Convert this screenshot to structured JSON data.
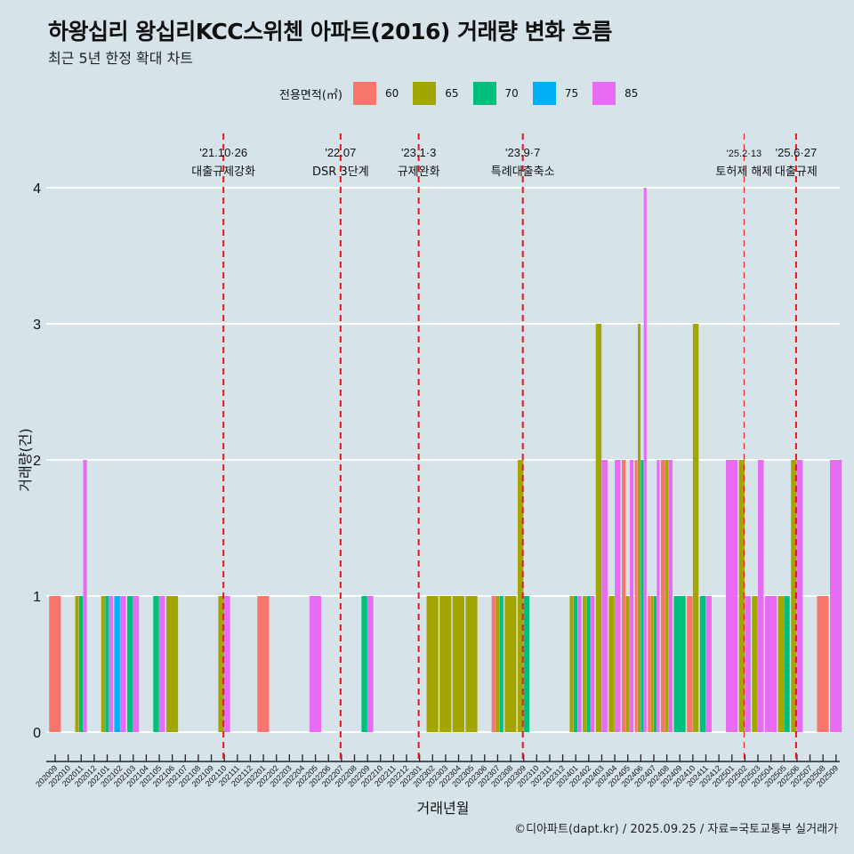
{
  "header": {
    "title": "하왕십리 왕십리KCC스위첸 아파트(2016) 거래량 변화 흐름",
    "subtitle": "최근 5년 한정 확대 차트"
  },
  "legend": {
    "title": "전용면적(㎡)",
    "items": [
      {
        "label": "60",
        "color": "#F8766D"
      },
      {
        "label": "65",
        "color": "#A3A500"
      },
      {
        "label": "70",
        "color": "#00BF7D"
      },
      {
        "label": "75",
        "color": "#00B0F6"
      },
      {
        "label": "85",
        "color": "#E76BF3"
      }
    ]
  },
  "caption": "©디아파트(dapt.kr) / 2025.09.25 / 자료=국토교통부 실거래가",
  "chart_data": {
    "type": "bar",
    "subtype": "dodged",
    "title": "하왕십리 왕십리KCC스위첸 아파트(2016) 거래량 변화 흐름",
    "subtitle": "최근 5년 한정 확대 차트",
    "xlabel": "거래년월",
    "ylabel": "거래량(건)",
    "ylim": [
      0,
      4
    ],
    "yticks": [
      0,
      1,
      2,
      3,
      4
    ],
    "grid": true,
    "legend_position": "top",
    "categories": [
      "202009",
      "202010",
      "202011",
      "202012",
      "202101",
      "202102",
      "202103",
      "202104",
      "202105",
      "202106",
      "202107",
      "202108",
      "202109",
      "202110",
      "202111",
      "202112",
      "202201",
      "202202",
      "202203",
      "202204",
      "202205",
      "202206",
      "202207",
      "202208",
      "202209",
      "202210",
      "202211",
      "202212",
      "202301",
      "202302",
      "202303",
      "202304",
      "202305",
      "202306",
      "202307",
      "202308",
      "202309",
      "202310",
      "202311",
      "202312",
      "202401",
      "202402",
      "202403",
      "202404",
      "202405",
      "202406",
      "202407",
      "202408",
      "202409",
      "202410",
      "202411",
      "202412",
      "202501",
      "202502",
      "202503",
      "202504",
      "202505",
      "202506",
      "202507",
      "202508",
      "202509"
    ],
    "series_names": [
      "60",
      "65",
      "70",
      "75",
      "85"
    ],
    "data": {
      "202009": {
        "60": 1
      },
      "202011": {
        "65": 1,
        "70": 1,
        "85": 2
      },
      "202101": {
        "65": 1,
        "70": 1,
        "85": 1
      },
      "202102": {
        "75": 1,
        "85": 1
      },
      "202103": {
        "70": 1,
        "85": 1
      },
      "202105": {
        "70": 1,
        "85": 1
      },
      "202106": {
        "65": 1
      },
      "202110": {
        "65": 1,
        "85": 1
      },
      "202201": {
        "60": 1
      },
      "202205": {
        "85": 1
      },
      "202209": {
        "70": 1,
        "85": 1
      },
      "202302": {
        "65": 1
      },
      "202303": {
        "65": 1
      },
      "202304": {
        "65": 1
      },
      "202305": {
        "65": 1
      },
      "202307": {
        "60": 1,
        "65": 1,
        "70": 1
      },
      "202308": {
        "65": 1
      },
      "202309": {
        "65": 2,
        "70": 1
      },
      "202401": {
        "65": 1,
        "70": 1,
        "85": 1
      },
      "202402": {
        "65": 1,
        "70": 1,
        "85": 1
      },
      "202403": {
        "65": 3,
        "85": 2
      },
      "202404": {
        "65": 1,
        "85": 2
      },
      "202405": {
        "60": 2,
        "65": 1,
        "85": 2
      },
      "202406": {
        "60": 2,
        "65": 3,
        "70": 2,
        "85": 4
      },
      "202407": {
        "60": 1,
        "65": 1,
        "70": 1,
        "85": 2
      },
      "202408": {
        "60": 2,
        "65": 2,
        "85": 2
      },
      "202409": {
        "70": 1
      },
      "202410": {
        "60": 1,
        "65": 3
      },
      "202411": {
        "70": 1,
        "85": 1
      },
      "202501": {
        "85": 2
      },
      "202502": {
        "65": 2,
        "85": 1
      },
      "202503": {
        "65": 1,
        "85": 2
      },
      "202504": {
        "85": 1
      },
      "202505": {
        "65": 1,
        "70": 1
      },
      "202506": {
        "65": 2,
        "85": 2
      },
      "202508": {
        "60": 1
      },
      "202509": {
        "85": 2
      }
    },
    "annotations": [
      {
        "month": "202110",
        "date": "'21.10·26",
        "label": "대출규제강화",
        "style": "dashed-bold"
      },
      {
        "month": "202207",
        "date": "'22.07",
        "label": "DSR 3단계",
        "style": "dashed-bold"
      },
      {
        "month": "202301",
        "date": "'23.1·3",
        "label": "규제완화",
        "style": "dashed-bold"
      },
      {
        "month": "202309",
        "date": "'23.9·7",
        "label": "특례대출축소",
        "style": "dashed-bold"
      },
      {
        "month": "202502",
        "date": "'25.2·13",
        "label": "토허제 해제",
        "style": "dashed-thin"
      },
      {
        "month": "202506",
        "date": "'25.6·27",
        "label": "대출규제",
        "style": "dashed-bold"
      }
    ]
  }
}
